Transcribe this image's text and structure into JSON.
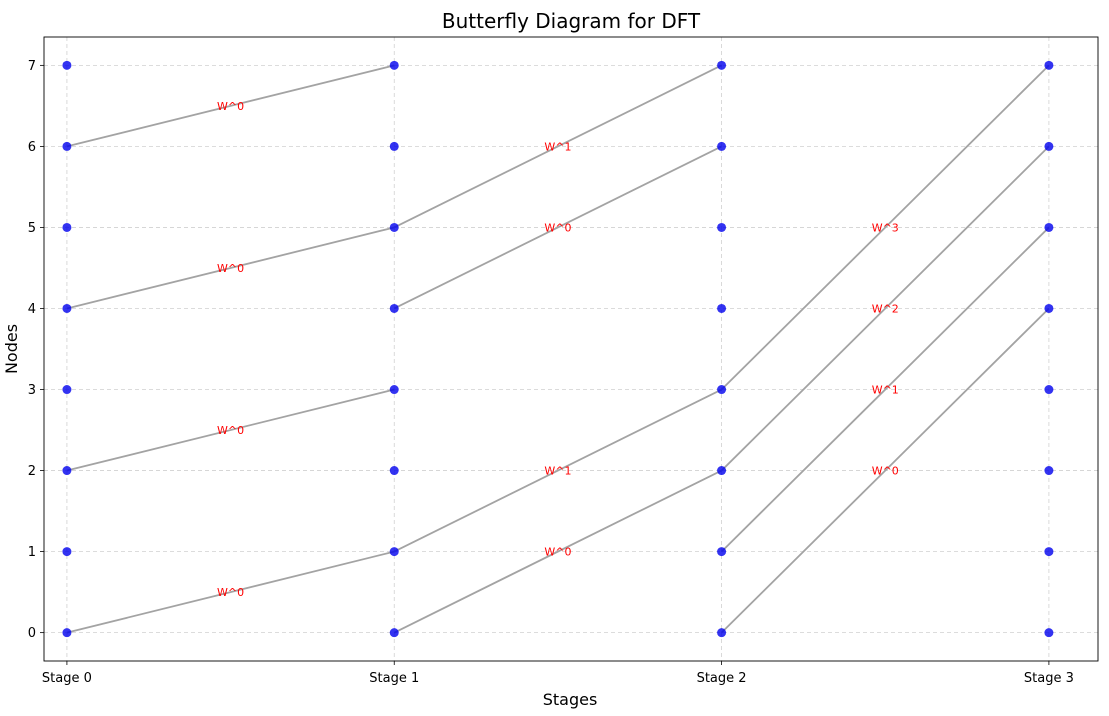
{
  "chart_data": {
    "type": "diagram",
    "title": "Butterfly Diagram for DFT",
    "xlabel": "Stages",
    "ylabel": "Nodes",
    "stages": [
      "Stage 0",
      "Stage 1",
      "Stage 2",
      "Stage 3"
    ],
    "node_ticks": [
      "0",
      "1",
      "2",
      "3",
      "4",
      "5",
      "6",
      "7"
    ],
    "nodes_per_stage": 8,
    "edges": [
      {
        "from_stage": 0,
        "from_node": 0,
        "to_stage": 1,
        "to_node": 1,
        "label": "W^0"
      },
      {
        "from_stage": 0,
        "from_node": 2,
        "to_stage": 1,
        "to_node": 3,
        "label": "W^0"
      },
      {
        "from_stage": 0,
        "from_node": 4,
        "to_stage": 1,
        "to_node": 5,
        "label": "W^0"
      },
      {
        "from_stage": 0,
        "from_node": 6,
        "to_stage": 1,
        "to_node": 7,
        "label": "W^0"
      },
      {
        "from_stage": 1,
        "from_node": 0,
        "to_stage": 2,
        "to_node": 2,
        "label": "W^0"
      },
      {
        "from_stage": 1,
        "from_node": 1,
        "to_stage": 2,
        "to_node": 3,
        "label": "W^1"
      },
      {
        "from_stage": 1,
        "from_node": 4,
        "to_stage": 2,
        "to_node": 6,
        "label": "W^0"
      },
      {
        "from_stage": 1,
        "from_node": 5,
        "to_stage": 2,
        "to_node": 7,
        "label": "W^1"
      },
      {
        "from_stage": 2,
        "from_node": 0,
        "to_stage": 3,
        "to_node": 4,
        "label": "W^0"
      },
      {
        "from_stage": 2,
        "from_node": 1,
        "to_stage": 3,
        "to_node": 5,
        "label": "W^1"
      },
      {
        "from_stage": 2,
        "from_node": 2,
        "to_stage": 3,
        "to_node": 6,
        "label": "W^2"
      },
      {
        "from_stage": 2,
        "from_node": 3,
        "to_stage": 3,
        "to_node": 7,
        "label": "W^3"
      }
    ],
    "xlim": [
      -0.07,
      3.15
    ],
    "ylim": [
      -0.35,
      7.35
    ],
    "grid": true,
    "colors": {
      "node": "#0000ee",
      "edge": "#a3a3a3",
      "twiddle_label": "#ff0000"
    }
  }
}
